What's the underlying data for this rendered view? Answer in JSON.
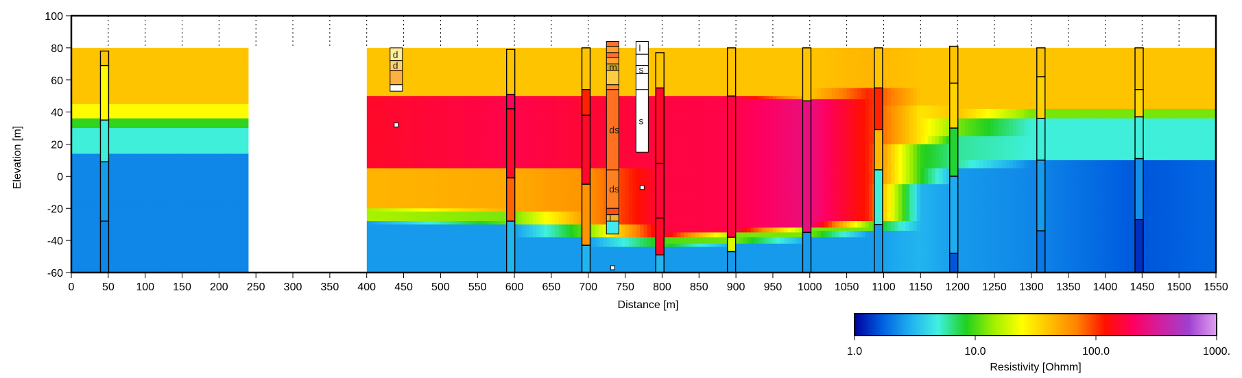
{
  "chart_data": {
    "type": "heatmap",
    "xlabel": "Distance [m]",
    "ylabel": "Elevation [m]",
    "xlim": [
      0,
      1550
    ],
    "ylim": [
      -60,
      100
    ],
    "x_ticks": [
      0,
      50,
      100,
      150,
      200,
      250,
      300,
      350,
      400,
      450,
      500,
      550,
      600,
      650,
      700,
      750,
      800,
      850,
      900,
      950,
      1000,
      1050,
      1100,
      1150,
      1200,
      1250,
      1300,
      1350,
      1400,
      1450,
      1500,
      1550
    ],
    "y_ticks": [
      -60,
      -40,
      -20,
      0,
      20,
      40,
      60,
      80,
      100
    ],
    "gap": [
      240,
      400
    ],
    "colorbar": {
      "label": "Resistivity [Ohmm]",
      "scale": "log",
      "range": [
        1,
        1000
      ],
      "tick_labels": [
        "1.0",
        "10.0",
        "100.0",
        "1000."
      ],
      "tick_values": [
        1,
        10,
        100,
        1000
      ],
      "colors": [
        "#0000a0",
        "#0060e0",
        "#20b0f0",
        "#40f0e0",
        "#20d020",
        "#a0f000",
        "#ffff00",
        "#ffc000",
        "#ff8000",
        "#ff1000",
        "#ff0060",
        "#d020a0",
        "#a040d0",
        "#e0a0f0"
      ]
    },
    "resistivity_columns": [
      {
        "x": 0,
        "layers": [
          [
            80,
            45,
            40
          ],
          [
            45,
            36,
            25
          ],
          [
            36,
            30,
            9
          ],
          [
            30,
            14,
            5
          ],
          [
            14,
            -60,
            2.2
          ]
        ]
      },
      {
        "x": 240,
        "layers": [
          [
            80,
            45,
            40
          ],
          [
            45,
            36,
            25
          ],
          [
            36,
            30,
            9
          ],
          [
            30,
            14,
            5
          ],
          [
            14,
            -60,
            2.2
          ]
        ]
      },
      {
        "x": 400,
        "layers": [
          [
            80,
            50,
            40
          ],
          [
            50,
            5,
            150
          ],
          [
            5,
            -20,
            45
          ],
          [
            -20,
            -28,
            15
          ],
          [
            -28,
            -60,
            2.5
          ]
        ]
      },
      {
        "x": 600,
        "layers": [
          [
            80,
            50,
            40
          ],
          [
            50,
            5,
            180
          ],
          [
            5,
            -22,
            50
          ],
          [
            -22,
            -30,
            12
          ],
          [
            -30,
            -60,
            2.5
          ]
        ]
      },
      {
        "x": 700,
        "layers": [
          [
            80,
            50,
            40
          ],
          [
            50,
            5,
            160
          ],
          [
            5,
            -30,
            60
          ],
          [
            -30,
            -38,
            12
          ],
          [
            -38,
            -60,
            2.5
          ]
        ]
      },
      {
        "x": 800,
        "layers": [
          [
            80,
            50,
            40
          ],
          [
            50,
            -38,
            170
          ],
          [
            -38,
            -44,
            10
          ],
          [
            -44,
            -60,
            2.5
          ]
        ]
      },
      {
        "x": 900,
        "layers": [
          [
            80,
            50,
            40
          ],
          [
            50,
            -35,
            180
          ],
          [
            -35,
            -42,
            12
          ],
          [
            -42,
            -60,
            2.5
          ]
        ]
      },
      {
        "x": 1000,
        "layers": [
          [
            80,
            48,
            40
          ],
          [
            48,
            -32,
            260
          ],
          [
            -32,
            -38,
            12
          ],
          [
            -38,
            -60,
            2.5
          ]
        ]
      },
      {
        "x": 1080,
        "layers": [
          [
            80,
            55,
            45
          ],
          [
            55,
            -28,
            110
          ],
          [
            -28,
            -34,
            12
          ],
          [
            -34,
            -60,
            2.5
          ]
        ]
      },
      {
        "x": 1150,
        "layers": [
          [
            80,
            44,
            40
          ],
          [
            44,
            20,
            30
          ],
          [
            20,
            -5,
            9
          ],
          [
            -5,
            -60,
            3
          ]
        ]
      },
      {
        "x": 1200,
        "layers": [
          [
            80,
            36,
            40
          ],
          [
            36,
            25,
            12
          ],
          [
            25,
            5,
            6
          ],
          [
            5,
            -60,
            2.5
          ]
        ]
      },
      {
        "x": 1300,
        "layers": [
          [
            80,
            42,
            40
          ],
          [
            42,
            36,
            12
          ],
          [
            36,
            10,
            5
          ],
          [
            10,
            -60,
            2.2
          ]
        ]
      },
      {
        "x": 1450,
        "layers": [
          [
            80,
            42,
            40
          ],
          [
            42,
            36,
            12
          ],
          [
            36,
            10,
            5
          ],
          [
            10,
            -60,
            1.6
          ]
        ]
      },
      {
        "x": 1550,
        "layers": [
          [
            80,
            42,
            40
          ],
          [
            42,
            36,
            12
          ],
          [
            36,
            10,
            5
          ],
          [
            10,
            -60,
            1.8
          ]
        ]
      }
    ],
    "boreholes_resistivity": [
      {
        "x": 45,
        "top": 78,
        "intervals": [
          [
            78,
            69,
            40
          ],
          [
            69,
            35,
            25
          ],
          [
            35,
            9,
            5
          ],
          [
            9,
            -28,
            2.5
          ],
          [
            -28,
            -60,
            2.2
          ]
        ]
      },
      {
        "x": 595,
        "top": 79,
        "intervals": [
          [
            79,
            51,
            40
          ],
          [
            51,
            42,
            200
          ],
          [
            42,
            -1,
            150
          ],
          [
            -1,
            -28,
            80
          ],
          [
            -28,
            -60,
            3
          ]
        ]
      },
      {
        "x": 697,
        "top": 80,
        "intervals": [
          [
            80,
            54,
            40
          ],
          [
            54,
            38,
            110
          ],
          [
            38,
            -5,
            150
          ],
          [
            -5,
            -43,
            60
          ],
          [
            -43,
            -60,
            3
          ]
        ]
      },
      {
        "x": 797,
        "top": 77,
        "intervals": [
          [
            77,
            55,
            40
          ],
          [
            55,
            8,
            150
          ],
          [
            8,
            -26,
            160
          ],
          [
            -26,
            -49,
            150
          ],
          [
            -49,
            -60,
            3
          ]
        ]
      },
      {
        "x": 894,
        "top": 80,
        "intervals": [
          [
            80,
            50,
            40
          ],
          [
            50,
            -38,
            170
          ],
          [
            -38,
            -47,
            20
          ],
          [
            -47,
            -60,
            2.5
          ]
        ]
      },
      {
        "x": 996,
        "top": 80,
        "intervals": [
          [
            80,
            47,
            40
          ],
          [
            47,
            -35,
            260
          ],
          [
            -35,
            -60,
            2.5
          ]
        ]
      },
      {
        "x": 1093,
        "top": 80,
        "intervals": [
          [
            80,
            55,
            40
          ],
          [
            55,
            29,
            110
          ],
          [
            29,
            4,
            45
          ],
          [
            4,
            -30,
            5
          ],
          [
            -30,
            -60,
            2.5
          ]
        ]
      },
      {
        "x": 1195,
        "top": 81,
        "intervals": [
          [
            81,
            58,
            40
          ],
          [
            58,
            30,
            35
          ],
          [
            30,
            0,
            8
          ],
          [
            0,
            -48,
            2.8
          ],
          [
            -48,
            -60,
            1.6
          ]
        ]
      },
      {
        "x": 1313,
        "top": 80,
        "intervals": [
          [
            80,
            62,
            40
          ],
          [
            62,
            36,
            35
          ],
          [
            36,
            10,
            5
          ],
          [
            10,
            -34,
            2.5
          ],
          [
            -34,
            -60,
            2
          ]
        ]
      },
      {
        "x": 1446,
        "top": 80,
        "intervals": [
          [
            80,
            54,
            40
          ],
          [
            54,
            37,
            35
          ],
          [
            37,
            11,
            5
          ],
          [
            11,
            -27,
            2.3
          ],
          [
            -27,
            -60,
            1.3
          ]
        ]
      }
    ],
    "boreholes_lithology": [
      {
        "x": 440,
        "top": 80,
        "intervals": [
          {
            "top": 80,
            "bottom": 72,
            "color": "#ffee99",
            "label": "d"
          },
          {
            "top": 72,
            "bottom": 66,
            "color": "#ffd070",
            "label": "d"
          },
          {
            "top": 66,
            "bottom": 57,
            "color": "#ffb040",
            "label": ""
          },
          {
            "top": 57,
            "bottom": 53,
            "color": "#ffffff",
            "label": ""
          }
        ]
      },
      {
        "x": 733,
        "top": 84,
        "intervals": [
          {
            "top": 84,
            "bottom": 81,
            "color": "#ff7030",
            "label": ""
          },
          {
            "top": 81,
            "bottom": 77,
            "color": "#ffa030",
            "label": ""
          },
          {
            "top": 77,
            "bottom": 74,
            "color": "#ff7030",
            "label": ""
          },
          {
            "top": 74,
            "bottom": 70,
            "color": "#ffa030",
            "label": ""
          },
          {
            "top": 70,
            "bottom": 66,
            "color": "#d0a020",
            "label": "m"
          },
          {
            "top": 66,
            "bottom": 57,
            "color": "#ffcc40",
            "label": ""
          },
          {
            "top": 57,
            "bottom": 54,
            "color": "#ff9030",
            "label": ""
          },
          {
            "top": 54,
            "bottom": 4,
            "color": "#ff7020",
            "label": "ds"
          },
          {
            "top": 4,
            "bottom": -20,
            "color": "#ff8020",
            "label": "ds"
          },
          {
            "top": -20,
            "bottom": -24,
            "color": "#ff5010",
            "label": ""
          },
          {
            "top": -24,
            "bottom": -28,
            "color": "#f0b030",
            "label": "l"
          },
          {
            "top": -28,
            "bottom": -36,
            "color": "#40e8f0",
            "label": ""
          }
        ]
      },
      {
        "x": 773,
        "top": 84,
        "intervals": [
          {
            "top": 84,
            "bottom": 76,
            "color": "#ffffff",
            "label": "l"
          },
          {
            "top": 76,
            "bottom": 69,
            "color": "#ffffff",
            "label": ""
          },
          {
            "top": 69,
            "bottom": 64,
            "color": "#ffffff",
            "label": "s"
          },
          {
            "top": 64,
            "bottom": 54,
            "color": "#ffffff",
            "label": ""
          },
          {
            "top": 54,
            "bottom": 15,
            "color": "#ffffff",
            "label": "s"
          }
        ]
      }
    ],
    "points": [
      {
        "x": 440,
        "y": 32
      },
      {
        "x": 773,
        "y": -7
      },
      {
        "x": 733,
        "y": -57
      }
    ]
  }
}
